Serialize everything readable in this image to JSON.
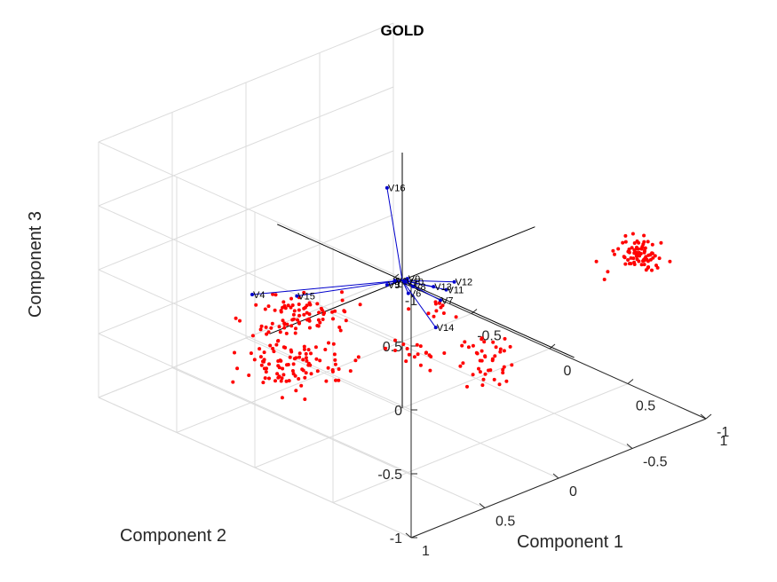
{
  "chart_data": {
    "type": "scatter",
    "title": "GOLD",
    "xlabel": "Component 1",
    "ylabel": "Component 2",
    "zlabel": "Component 3",
    "xlim": [
      -1,
      1
    ],
    "ylim": [
      -1,
      1
    ],
    "zlim": [
      -1,
      1
    ],
    "xticks": [
      "-1",
      "-0.5",
      "0",
      "0.5",
      "1"
    ],
    "yticks": [
      "-1",
      "-0.5",
      "0",
      "0.5",
      "1"
    ],
    "zticks": [
      "-1",
      "-0.5",
      "0",
      "0.5",
      "1"
    ],
    "grid": true,
    "colors": {
      "vectors": "#0000cc",
      "scores": "#ff0000",
      "axes": "#000000",
      "grid": "#dcdcdc"
    },
    "loadings": [
      {
        "name": "V16",
        "x": -0.05,
        "y": 0.05,
        "z": 0.72
      },
      {
        "name": "V12",
        "x": 0.38,
        "y": 0.05,
        "z": 0.22
      },
      {
        "name": "V11",
        "x": 0.3,
        "y": 0.02,
        "z": 0.1
      },
      {
        "name": "V9",
        "x": 0.08,
        "y": 0.05,
        "z": 0.08
      },
      {
        "name": "V13",
        "x": 0.2,
        "y": 0.0,
        "z": 0.06
      },
      {
        "name": "V4",
        "x": -0.3,
        "y": 0.7,
        "z": 0.05
      },
      {
        "name": "V15",
        "x": -0.25,
        "y": 0.45,
        "z": -0.05
      },
      {
        "name": "V5",
        "x": -0.05,
        "y": 0.05,
        "z": -0.04
      },
      {
        "name": "V8",
        "x": 0.05,
        "y": -0.02,
        "z": -0.03
      },
      {
        "name": "V6",
        "x": 0.02,
        "y": -0.02,
        "z": -0.1
      },
      {
        "name": "V7",
        "x": 0.15,
        "y": -0.1,
        "z": -0.12
      },
      {
        "name": "V14",
        "x": 0.12,
        "y": -0.1,
        "z": -0.35
      },
      {
        "name": "V1",
        "x": -0.02,
        "y": 0.03,
        "z": 0.0
      },
      {
        "name": "V10",
        "x": 0.02,
        "y": 0.0,
        "z": 0.0
      }
    ],
    "score_clusters": [
      {
        "x": 0.05,
        "y": 0.75,
        "z": 0.1,
        "sx": 0.1,
        "sy": 0.12,
        "sz": 0.08,
        "n": 85
      },
      {
        "x": 0.05,
        "y": 0.75,
        "z": -0.3,
        "sx": 0.12,
        "sy": 0.12,
        "sz": 0.05,
        "n": 95
      },
      {
        "x": 0.35,
        "y": 0.25,
        "z": -0.3,
        "sx": 0.1,
        "sy": 0.05,
        "sz": 0.03,
        "n": 18
      },
      {
        "x": 0.55,
        "y": -0.05,
        "z": -0.28,
        "sx": 0.07,
        "sy": 0.05,
        "sz": 0.04,
        "n": 22
      },
      {
        "x": 0.45,
        "y": -0.15,
        "z": -0.55,
        "sx": 0.07,
        "sy": 0.05,
        "sz": 0.06,
        "n": 20
      },
      {
        "x": 0.3,
        "y": 0.05,
        "z": -0.02,
        "sx": 0.06,
        "sy": 0.05,
        "sz": 0.04,
        "n": 12
      },
      {
        "x": 0.95,
        "y": -0.6,
        "z": 0.45,
        "sx": 0.06,
        "sy": 0.04,
        "sz": 0.05,
        "n": 80
      },
      {
        "x": 0.75,
        "y": -0.55,
        "z": 0.2,
        "sx": 0.03,
        "sy": 0.03,
        "sz": 0.03,
        "n": 3
      }
    ]
  }
}
